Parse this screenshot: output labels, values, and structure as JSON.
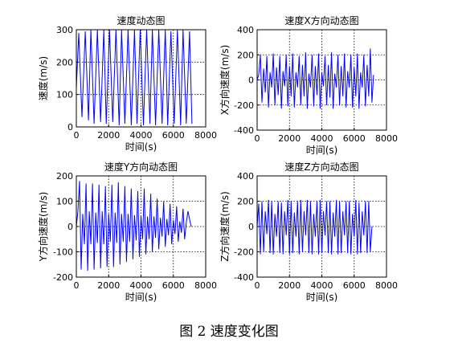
{
  "figure": {
    "caption": "图 2  速度变化图"
  },
  "chart_data": [
    {
      "type": "line",
      "title": "速度动态图",
      "xlabel": "时间(s)",
      "ylabel": "速度(m/s)",
      "xlim": [
        0,
        8000
      ],
      "ylim": [
        0,
        300
      ],
      "xticks": [
        0,
        2000,
        4000,
        6000,
        8000
      ],
      "yticks": [
        0,
        100,
        200,
        300
      ],
      "grid": true,
      "grid_style": "dotted",
      "line_color": "#0000ff",
      "series": [
        {
          "x": [
            0,
            150,
            350,
            550,
            750,
            900,
            1100,
            1300,
            1500,
            1700,
            1850,
            2050,
            2250,
            2450,
            2650,
            2800,
            3000,
            3200,
            3400,
            3600,
            3750,
            3950,
            4150,
            4350,
            4550,
            4700,
            4900,
            5100,
            5300,
            5500,
            5650,
            5850,
            6050,
            6250,
            6450,
            6600,
            6800,
            7000,
            7150
          ],
          "y": [
            120,
            290,
            30,
            295,
            20,
            300,
            10,
            300,
            15,
            300,
            10,
            300,
            15,
            300,
            5,
            300,
            10,
            300,
            5,
            300,
            10,
            300,
            5,
            300,
            10,
            300,
            5,
            300,
            10,
            300,
            5,
            295,
            10,
            300,
            5,
            300,
            10,
            295,
            10
          ]
        }
      ]
    },
    {
      "type": "line",
      "title": "速度X方向动态图",
      "xlabel": "时间(s)",
      "ylabel": "X方向速度(m/s)",
      "xlim": [
        0,
        8000
      ],
      "ylim": [
        -400,
        400
      ],
      "xticks": [
        0,
        2000,
        4000,
        6000,
        8000
      ],
      "yticks": [
        -400,
        -200,
        0,
        200,
        400
      ],
      "grid": true,
      "grid_style": "dotted",
      "line_color": "#0000ff",
      "series": [
        {
          "x": [
            0,
            100,
            200,
            300,
            400,
            500,
            600,
            700,
            800,
            900,
            1000,
            1100,
            1200,
            1300,
            1400,
            1500,
            1600,
            1700,
            1800,
            1900,
            2000,
            2100,
            2200,
            2300,
            2400,
            2500,
            2600,
            2700,
            2800,
            2900,
            3000,
            3100,
            3200,
            3300,
            3400,
            3500,
            3600,
            3700,
            3800,
            3900,
            4000,
            4100,
            4200,
            4300,
            4400,
            4500,
            4600,
            4700,
            4800,
            4900,
            5000,
            5100,
            5200,
            5300,
            5400,
            5500,
            5600,
            5700,
            5800,
            5900,
            6000,
            6100,
            6200,
            6300,
            6400,
            6500,
            6600,
            6700,
            6800,
            6900,
            7000,
            7100,
            7200
          ],
          "y": [
            0,
            40,
            200,
            -180,
            90,
            -100,
            190,
            -220,
            60,
            -60,
            210,
            -200,
            100,
            -120,
            190,
            -230,
            70,
            -50,
            200,
            -210,
            110,
            -130,
            210,
            -220,
            60,
            -60,
            190,
            -200,
            120,
            -130,
            220,
            -230,
            50,
            -60,
            200,
            -210,
            110,
            -120,
            210,
            -230,
            60,
            -50,
            190,
            -200,
            120,
            -140,
            220,
            -230,
            50,
            -60,
            200,
            -200,
            110,
            -130,
            210,
            -220,
            70,
            -60,
            200,
            -220,
            100,
            -130,
            210,
            -230,
            60,
            -60,
            200,
            -210,
            120,
            -130,
            250,
            -180,
            40
          ]
        }
      ]
    },
    {
      "type": "line",
      "title": "速度Y方向动态图",
      "xlabel": "时间(s)",
      "ylabel": "Y方向速度(m/s)",
      "xlim": [
        0,
        8000
      ],
      "ylim": [
        -200,
        200
      ],
      "xticks": [
        0,
        2000,
        4000,
        6000,
        8000
      ],
      "yticks": [
        -200,
        -100,
        0,
        100,
        200
      ],
      "grid": true,
      "grid_style": "dotted",
      "line_color": "#0000ff",
      "series": [
        {
          "x": [
            0,
            100,
            200,
            300,
            400,
            500,
            600,
            700,
            800,
            900,
            1000,
            1100,
            1200,
            1300,
            1400,
            1500,
            1600,
            1700,
            1800,
            1900,
            2000,
            2100,
            2200,
            2300,
            2400,
            2500,
            2600,
            2700,
            2800,
            2900,
            3000,
            3100,
            3200,
            3300,
            3400,
            3500,
            3600,
            3700,
            3800,
            3900,
            4000,
            4100,
            4200,
            4300,
            4400,
            4500,
            4600,
            4700,
            4800,
            4900,
            5000,
            5100,
            5200,
            5300,
            5400,
            5500,
            5600,
            5700,
            5800,
            5900,
            6000,
            6100,
            6200,
            6300,
            6400,
            6500,
            6600,
            6700,
            6800,
            6900,
            7000,
            7100
          ],
          "y": [
            0,
            60,
            180,
            -170,
            50,
            -70,
            170,
            -175,
            60,
            -70,
            170,
            -170,
            55,
            -65,
            165,
            -165,
            60,
            -70,
            160,
            -160,
            50,
            -60,
            165,
            -160,
            55,
            -65,
            175,
            -150,
            50,
            -60,
            160,
            -140,
            50,
            -60,
            150,
            -130,
            45,
            -55,
            140,
            -120,
            40,
            -50,
            150,
            -110,
            40,
            -50,
            130,
            -100,
            40,
            -45,
            110,
            -90,
            35,
            -40,
            100,
            -80,
            30,
            -35,
            90,
            -70,
            25,
            -30,
            80,
            -60,
            20,
            -25,
            70,
            -50,
            15,
            60,
            30,
            0
          ]
        }
      ]
    },
    {
      "type": "line",
      "title": "速度Z方向动态图",
      "xlabel": "时间(s)",
      "ylabel": "Z方向速度(m/s)",
      "xlim": [
        0,
        8000
      ],
      "ylim": [
        -400,
        400
      ],
      "xticks": [
        0,
        2000,
        4000,
        6000,
        8000
      ],
      "yticks": [
        -400,
        -200,
        0,
        200,
        400
      ],
      "grid": true,
      "grid_style": "dotted",
      "line_color": "#0000ff",
      "series": [
        {
          "x": [
            0,
            100,
            200,
            300,
            400,
            500,
            600,
            700,
            800,
            900,
            1000,
            1100,
            1200,
            1300,
            1400,
            1500,
            1600,
            1700,
            1800,
            1900,
            2000,
            2100,
            2200,
            2300,
            2400,
            2500,
            2600,
            2700,
            2800,
            2900,
            3000,
            3100,
            3200,
            3300,
            3400,
            3500,
            3600,
            3700,
            3800,
            3900,
            4000,
            4100,
            4200,
            4300,
            4400,
            4500,
            4600,
            4700,
            4800,
            4900,
            5000,
            5100,
            5200,
            5300,
            5400,
            5500,
            5600,
            5700,
            5800,
            5900,
            6000,
            6100,
            6200,
            6300,
            6400,
            6500,
            6600,
            6700,
            6800,
            6900,
            7000,
            7100
          ],
          "y": [
            0,
            180,
            -220,
            200,
            -200,
            120,
            -60,
            210,
            -210,
            200,
            -220,
            100,
            -80,
            200,
            -210,
            190,
            -220,
            120,
            -70,
            210,
            -220,
            200,
            -210,
            110,
            -80,
            200,
            -220,
            210,
            -200,
            120,
            -70,
            210,
            -210,
            200,
            -220,
            100,
            -80,
            200,
            -220,
            210,
            -210,
            120,
            -70,
            200,
            -210,
            200,
            -220,
            110,
            -80,
            210,
            -220,
            200,
            -210,
            120,
            -70,
            200,
            -210,
            200,
            -220,
            100,
            -80,
            210,
            -220,
            190,
            -210,
            120,
            -70,
            200,
            -210,
            200,
            -200,
            0
          ]
        }
      ]
    }
  ]
}
